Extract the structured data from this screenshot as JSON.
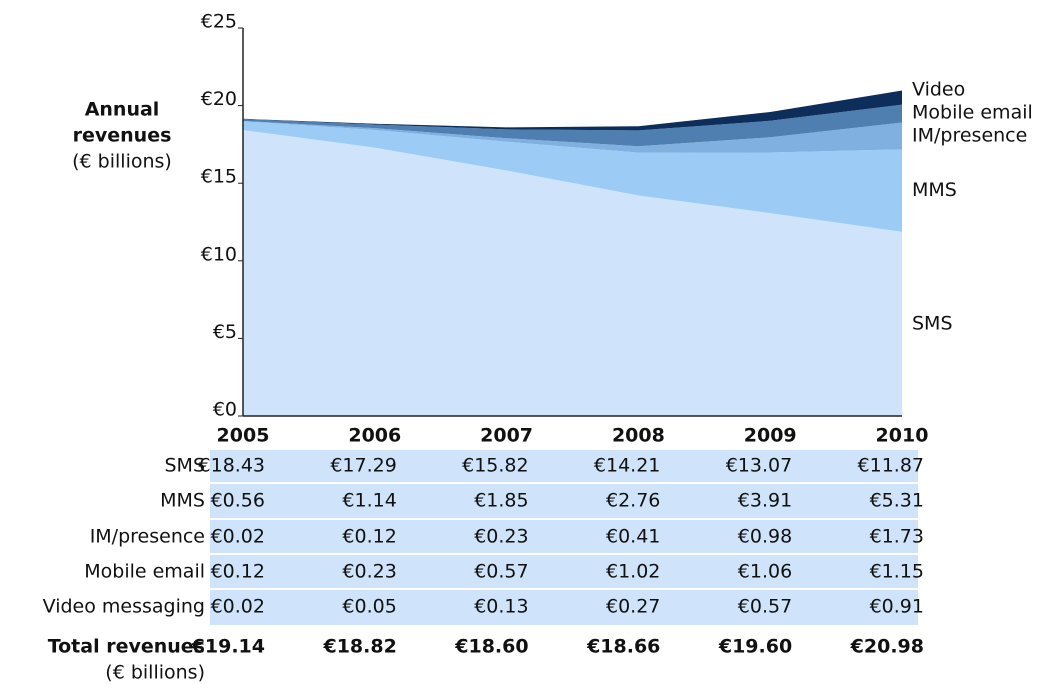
{
  "chart_data": {
    "type": "stacked_area",
    "y_label_lines": [
      "Annual",
      "revenues",
      "(€ billions)"
    ],
    "categories": [
      "2005",
      "2006",
      "2007",
      "2008",
      "2009",
      "2010"
    ],
    "ylim": [
      0,
      25
    ],
    "yticks": [
      {
        "value": 0,
        "label": "€0"
      },
      {
        "value": 5,
        "label": "€5"
      },
      {
        "value": 10,
        "label": "€10"
      },
      {
        "value": 15,
        "label": "€15"
      },
      {
        "value": 20,
        "label": "€20"
      },
      {
        "value": 25,
        "label": "€25"
      }
    ],
    "series": [
      {
        "name": "SMS",
        "table_label": "SMS",
        "color": "#cfe4fb",
        "values": [
          18.43,
          17.29,
          15.82,
          14.21,
          13.07,
          11.87
        ],
        "value_labels": [
          "€18.43",
          "€17.29",
          "€15.82",
          "€14.21",
          "€13.07",
          "€11.87"
        ]
      },
      {
        "name": "MMS",
        "table_label": "MMS",
        "color": "#9ccbf5",
        "values": [
          0.56,
          1.14,
          1.85,
          2.76,
          3.91,
          5.31
        ],
        "value_labels": [
          "€0.56",
          "€1.14",
          "€1.85",
          "€2.76",
          "€3.91",
          "€5.31"
        ]
      },
      {
        "name": "IM/presence",
        "table_label": "IM/presence",
        "color": "#7fb0e0",
        "values": [
          0.02,
          0.12,
          0.23,
          0.41,
          0.98,
          1.73
        ],
        "value_labels": [
          "€0.02",
          "€0.12",
          "€0.23",
          "€0.41",
          "€0.98",
          "€1.73"
        ]
      },
      {
        "name": "Mobile email",
        "table_label": "Mobile email",
        "color": "#4f7fb0",
        "values": [
          0.12,
          0.23,
          0.57,
          1.02,
          1.06,
          1.15
        ],
        "value_labels": [
          "€0.12",
          "€0.23",
          "€0.57",
          "€1.02",
          "€1.06",
          "€1.15"
        ]
      },
      {
        "name": "Video",
        "table_label": "Video messaging",
        "color": "#0d2e5a",
        "values": [
          0.02,
          0.05,
          0.13,
          0.27,
          0.57,
          0.91
        ],
        "value_labels": [
          "€0.02",
          "€0.05",
          "€0.13",
          "€0.27",
          "€0.57",
          "€0.91"
        ]
      }
    ],
    "totals": {
      "label": "Total revenues",
      "sublabel": "(€ billions)",
      "values": [
        19.14,
        18.82,
        18.6,
        18.66,
        19.6,
        20.98
      ],
      "value_labels": [
        "€19.14",
        "€18.82",
        "€18.60",
        "€18.66",
        "€19.60",
        "€20.98"
      ]
    }
  }
}
